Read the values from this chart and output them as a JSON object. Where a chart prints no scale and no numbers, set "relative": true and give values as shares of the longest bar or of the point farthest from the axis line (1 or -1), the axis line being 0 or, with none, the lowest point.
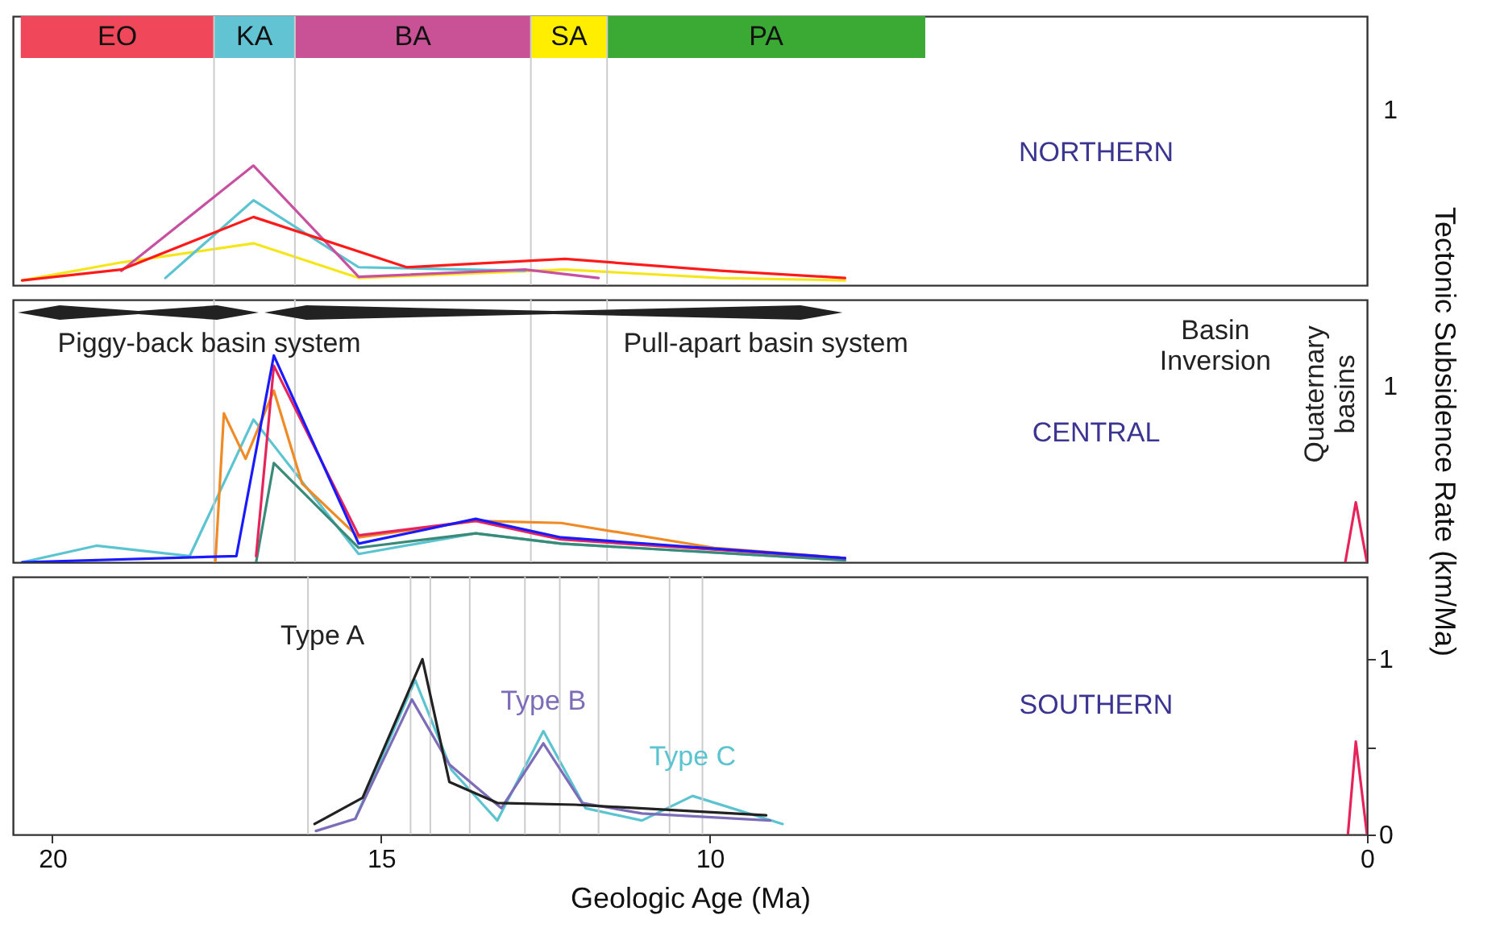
{
  "chart_data": [
    {
      "type": "line",
      "xlim": [
        20.6,
        0
      ],
      "xticks": [
        20,
        15,
        10,
        0
      ],
      "relative": true,
      "tick_labels": false,
      "annotations": [
        "NORTHERN",
        "1"
      ],
      "bands": [
        {
          "axis": "x",
          "from": 20.48,
          "to": 17.54,
          "label": "EO",
          "color": "#f0485a"
        },
        {
          "axis": "x",
          "from": 17.54,
          "to": 16.31,
          "label": "KA",
          "color": "#62c3d3"
        },
        {
          "axis": "x",
          "from": 16.31,
          "to": 12.72,
          "label": "BA",
          "color": "#c95297"
        },
        {
          "axis": "x",
          "from": 12.72,
          "to": 11.56,
          "label": "SA",
          "color": "#ffee00"
        },
        {
          "axis": "x",
          "from": 11.56,
          "to": 6.72,
          "label": "PA",
          "color": "#3aaa35"
        }
      ],
      "series": [
        {
          "color": "#f5e61c",
          "x": [
            20.46,
            18.95,
            16.94,
            15.34,
            12.2,
            9.83,
            7.94
          ],
          "values": [
            0.04,
            0.19,
            0.35,
            0.06,
            0.13,
            0.06,
            0.04
          ]
        },
        {
          "color": "#5bc4d0",
          "x": [
            18.28,
            16.94,
            15.34,
            12.81
          ],
          "values": [
            0.06,
            0.71,
            0.15,
            0.12
          ]
        },
        {
          "color": "#c850a0",
          "x": [
            18.95,
            16.94,
            15.34,
            12.81,
            11.69
          ],
          "values": [
            0.12,
            1,
            0.07,
            0.13,
            0.06
          ]
        },
        {
          "color": "#ff1a1a",
          "x": [
            20.46,
            18.95,
            16.94,
            14.61,
            12.2,
            9.83,
            7.94
          ],
          "values": [
            0.04,
            0.13,
            0.57,
            0.15,
            0.22,
            0.12,
            0.06
          ]
        }
      ]
    },
    {
      "type": "line",
      "xlim": [
        20.6,
        0
      ],
      "xticks": [
        20,
        15,
        10,
        0
      ],
      "relative": true,
      "tick_labels": false,
      "ylabel": "Tectonic Subsidence Rate (km/Ma)",
      "annotations": [
        "CENTRAL",
        "Piggy-back basin system",
        "Pull-apart basin system",
        "Basin Inversion",
        "Quaternary basins",
        "1"
      ],
      "ref_lines": [
        {
          "axis": "x",
          "value": 17.54,
          "color": "#cccccc"
        },
        {
          "axis": "x",
          "value": 16.31,
          "color": "#cccccc"
        },
        {
          "axis": "x",
          "value": 12.72,
          "color": "#cccccc"
        },
        {
          "axis": "x",
          "value": 11.56,
          "color": "#cccccc"
        }
      ],
      "series": [
        {
          "color": "#5bc4d0",
          "x": [
            20.46,
            19.33,
            17.91,
            16.94,
            15.34,
            13.56,
            12.26,
            7.94
          ],
          "values": [
            0,
            0.08,
            0.03,
            0.69,
            0.04,
            0.14,
            0.09,
            0.01
          ]
        },
        {
          "color": "#f08a24",
          "x": [
            17.52,
            17.39,
            17.06,
            16.63,
            16.2,
            15.34,
            13.56,
            12.26,
            9.94,
            7.94
          ],
          "values": [
            0,
            0.72,
            0.5,
            0.83,
            0.38,
            0.12,
            0.2,
            0.19,
            0.07,
            0.02
          ]
        },
        {
          "color": "#3a8a7a",
          "x": [
            16.9,
            16.63,
            15.34,
            13.56,
            12.26,
            7.94
          ],
          "values": [
            0,
            0.48,
            0.07,
            0.14,
            0.09,
            0.01
          ]
        },
        {
          "color": "#e6245a",
          "x": [
            16.9,
            16.63,
            15.34,
            13.56,
            12.26,
            7.94
          ],
          "values": [
            0.03,
            0.95,
            0.13,
            0.2,
            0.11,
            0.02
          ]
        },
        {
          "color": "#1a1aff",
          "x": [
            20.46,
            17.2,
            16.63,
            15.34,
            13.56,
            12.26,
            7.94
          ],
          "values": [
            0,
            0.03,
            1,
            0.09,
            0.21,
            0.12,
            0.02
          ]
        },
        {
          "color": "#e6245a",
          "x": [
            0.33,
            0.17,
            0
          ],
          "values": [
            0,
            0.29,
            0
          ]
        }
      ]
    },
    {
      "type": "line",
      "xlim": [
        20.6,
        0
      ],
      "xticks": [
        20,
        15,
        10,
        0
      ],
      "ylim": [
        0,
        1.47
      ],
      "yticks": [
        0,
        {
          "value": 0.5,
          "label": null
        },
        1
      ],
      "xlabel": "Geologic Age (Ma)",
      "annotations": [
        "SOUTHERN"
      ],
      "ref_lines": [
        {
          "axis": "x",
          "value": 16.11,
          "color": "#cccccc"
        },
        {
          "axis": "x",
          "value": 14.55,
          "color": "#cccccc"
        },
        {
          "axis": "x",
          "value": 14.25,
          "color": "#cccccc"
        },
        {
          "axis": "x",
          "value": 13.65,
          "color": "#cccccc"
        },
        {
          "axis": "x",
          "value": 12.81,
          "color": "#cccccc"
        },
        {
          "axis": "x",
          "value": 12.28,
          "color": "#cccccc"
        },
        {
          "axis": "x",
          "value": 11.69,
          "color": "#cccccc"
        },
        {
          "axis": "x",
          "value": 10.61,
          "color": "#cccccc"
        },
        {
          "axis": "x",
          "value": 10.11,
          "color": "#cccccc"
        }
      ],
      "series": [
        {
          "name": "Type C",
          "color": "#5bc4d0",
          "x": [
            15.39,
            14.48,
            13.93,
            13.23,
            12.53,
            11.89,
            11.03,
            10.26,
            8.89
          ],
          "values": [
            0.09,
            0.88,
            0.37,
            0.08,
            0.59,
            0.15,
            0.08,
            0.22,
            0.06
          ]
        },
        {
          "name": "Type B",
          "color": "#7d6cb8",
          "x": [
            15.99,
            15.39,
            14.53,
            13.96,
            13.17,
            12.53,
            11.94,
            11.03,
            9.08
          ],
          "values": [
            0.02,
            0.09,
            0.77,
            0.4,
            0.15,
            0.52,
            0.18,
            0.12,
            0.08
          ]
        },
        {
          "name": "Type A",
          "color": "#222222",
          "x": [
            16.01,
            15.28,
            14.37,
            13.96,
            13.23,
            12.05,
            9.14
          ],
          "values": [
            0.06,
            0.21,
            1.0,
            0.3,
            0.18,
            0.17,
            0.11
          ]
        },
        {
          "color": "#e6245a",
          "x": [
            0.29,
            0.17,
            0
          ],
          "values": [
            0,
            0.53,
            0
          ]
        }
      ]
    }
  ]
}
